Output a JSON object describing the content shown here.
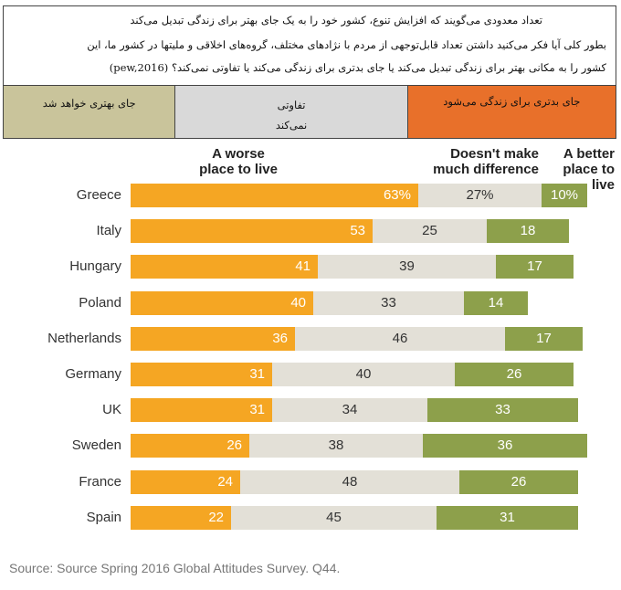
{
  "caption": {
    "line1": "تعداد معدودی می‌گویند که افزایش تنوع، کشور خود را به یک جای بهتر برای زندگی تبدیل می‌کند",
    "line2": "بطور کلی آیا فکر می‌کنید داشتن تعداد قابل‌توجهی از مردم با نژادهای مختلف، گروه‌های اخلاقی و ملیتها در کشور ما، این",
    "line3": "کشور را به مکانی بهتر برای زندگی تبدیل می‌کند یا جای بدتری برای زندگی می‌کند یا تفاوتی نمی‌کند؟ (pew,2016)"
  },
  "legend": {
    "better": "جای بهتری خواهد شد",
    "no_diff_1": "تفاوتی",
    "no_diff_2": "نمی‌کند",
    "worse": "جای بدتری برای زندگی می‌شود"
  },
  "colors": {
    "worse": "#f5a623",
    "no_diff": "#e3e0d7",
    "better": "#8da04b"
  },
  "chart_data": {
    "type": "bar",
    "stacked": true,
    "orientation": "horizontal",
    "column_headers": {
      "worse_1": "A worse",
      "worse_2": "place to live",
      "nodiff_1": "Doesn't make",
      "nodiff_2": "much difference",
      "better_1": "A better",
      "better_2": "place to live"
    },
    "categories": [
      "Greece",
      "Italy",
      "Hungary",
      "Poland",
      "Netherlands",
      "Germany",
      "UK",
      "Sweden",
      "France",
      "Spain"
    ],
    "series": [
      {
        "name": "A worse place to live",
        "values": [
          63,
          53,
          41,
          40,
          36,
          31,
          31,
          26,
          24,
          22
        ],
        "labels": [
          "63%",
          "53",
          "41",
          "40",
          "36",
          "31",
          "31",
          "26",
          "24",
          "22"
        ]
      },
      {
        "name": "Doesn't make much difference",
        "values": [
          27,
          25,
          39,
          33,
          46,
          40,
          34,
          38,
          48,
          45
        ],
        "labels": [
          "27%",
          "25",
          "39",
          "33",
          "46",
          "40",
          "34",
          "38",
          "48",
          "45"
        ]
      },
      {
        "name": "A better place to live",
        "values": [
          10,
          18,
          17,
          14,
          17,
          26,
          33,
          36,
          26,
          31
        ],
        "labels": [
          "10%",
          "18",
          "17",
          "14",
          "17",
          "26",
          "33",
          "36",
          "26",
          "31"
        ]
      }
    ]
  },
  "source": "Source: Source Spring 2016 Global Attitudes Survey. Q44."
}
